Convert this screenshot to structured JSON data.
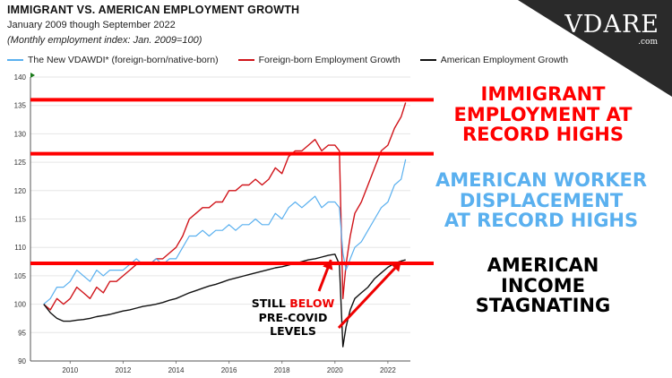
{
  "header": {
    "title": "IMMIGRANT VS. AMERICAN EMPLOYMENT GROWTH",
    "subtitle": "January 2009 though September 2022",
    "note": "(Monthly employment index: Jan. 2009=100)"
  },
  "logo": {
    "text": "VDARE",
    "suffix": ".com"
  },
  "legend": [
    {
      "label": "The New VDAWDI* (foreign-born/native-born)",
      "color": "#5ab0ef"
    },
    {
      "label": "Foreign-born Employment Growth",
      "color": "#d0141a"
    },
    {
      "label": "American Employment Growth",
      "color": "#111111"
    }
  ],
  "callouts": {
    "immigrant": [
      "IMMIGRANT",
      "EMPLOYMENT AT",
      "RECORD HIGHS"
    ],
    "displacement": [
      "AMERICAN WORKER",
      "DISPLACEMENT",
      "AT RECORD HIGHS"
    ],
    "income": [
      "AMERICAN",
      "INCOME",
      "STAGNATING"
    ],
    "covid_before": "STILL ",
    "covid_red": "BELOW",
    "covid_after": [
      "PRE-COVID",
      "LEVELS"
    ]
  },
  "colors": {
    "foreign": "#d0141a",
    "ratio": "#5ab0ef",
    "american": "#111111",
    "highlight": "#ff0000"
  },
  "chart_data": {
    "type": "line",
    "x_unit": "year",
    "xlim": [
      2008.5,
      2022.85
    ],
    "ylim": [
      90,
      140
    ],
    "x_ticks": [
      2010,
      2012,
      2014,
      2016,
      2018,
      2020,
      2022
    ],
    "y_ticks": [
      90,
      95,
      100,
      105,
      110,
      115,
      120,
      125,
      130,
      135,
      140
    ],
    "highlight_lines": [
      136,
      126.5,
      107.2
    ],
    "series": [
      {
        "name": "Foreign-born Employment Growth",
        "color": "#d0141a",
        "points": [
          [
            2009.0,
            100
          ],
          [
            2009.25,
            99
          ],
          [
            2009.5,
            101
          ],
          [
            2009.75,
            100
          ],
          [
            2010.0,
            101
          ],
          [
            2010.25,
            103
          ],
          [
            2010.5,
            102
          ],
          [
            2010.75,
            101
          ],
          [
            2011.0,
            103
          ],
          [
            2011.25,
            102
          ],
          [
            2011.5,
            104
          ],
          [
            2011.75,
            104
          ],
          [
            2012.0,
            105
          ],
          [
            2012.25,
            106
          ],
          [
            2012.5,
            107
          ],
          [
            2012.75,
            107
          ],
          [
            2013.0,
            107
          ],
          [
            2013.25,
            108
          ],
          [
            2013.5,
            108
          ],
          [
            2013.75,
            109
          ],
          [
            2014.0,
            110
          ],
          [
            2014.25,
            112
          ],
          [
            2014.5,
            115
          ],
          [
            2014.75,
            116
          ],
          [
            2015.0,
            117
          ],
          [
            2015.25,
            117
          ],
          [
            2015.5,
            118
          ],
          [
            2015.75,
            118
          ],
          [
            2016.0,
            120
          ],
          [
            2016.25,
            120
          ],
          [
            2016.5,
            121
          ],
          [
            2016.75,
            121
          ],
          [
            2017.0,
            122
          ],
          [
            2017.25,
            121
          ],
          [
            2017.5,
            122
          ],
          [
            2017.75,
            124
          ],
          [
            2018.0,
            123
          ],
          [
            2018.25,
            126
          ],
          [
            2018.5,
            127
          ],
          [
            2018.75,
            127
          ],
          [
            2019.0,
            128
          ],
          [
            2019.25,
            129
          ],
          [
            2019.5,
            127
          ],
          [
            2019.75,
            128
          ],
          [
            2020.0,
            128
          ],
          [
            2020.17,
            127
          ],
          [
            2020.3,
            101
          ],
          [
            2020.42,
            107
          ],
          [
            2020.58,
            112
          ],
          [
            2020.75,
            116
          ],
          [
            2021.0,
            118
          ],
          [
            2021.25,
            121
          ],
          [
            2021.5,
            124
          ],
          [
            2021.75,
            127
          ],
          [
            2022.0,
            128
          ],
          [
            2022.25,
            131
          ],
          [
            2022.5,
            133
          ],
          [
            2022.67,
            135.5
          ]
        ]
      },
      {
        "name": "The New VDAWDI* (foreign-born/native-born)",
        "color": "#5ab0ef",
        "points": [
          [
            2009.0,
            100
          ],
          [
            2009.25,
            101
          ],
          [
            2009.5,
            103
          ],
          [
            2009.75,
            103
          ],
          [
            2010.0,
            104
          ],
          [
            2010.25,
            106
          ],
          [
            2010.5,
            105
          ],
          [
            2010.75,
            104
          ],
          [
            2011.0,
            106
          ],
          [
            2011.25,
            105
          ],
          [
            2011.5,
            106
          ],
          [
            2011.75,
            106
          ],
          [
            2012.0,
            106
          ],
          [
            2012.25,
            107
          ],
          [
            2012.5,
            108
          ],
          [
            2012.75,
            107
          ],
          [
            2013.0,
            107
          ],
          [
            2013.25,
            108
          ],
          [
            2013.5,
            107
          ],
          [
            2013.75,
            108
          ],
          [
            2014.0,
            108
          ],
          [
            2014.25,
            110
          ],
          [
            2014.5,
            112
          ],
          [
            2014.75,
            112
          ],
          [
            2015.0,
            113
          ],
          [
            2015.25,
            112
          ],
          [
            2015.5,
            113
          ],
          [
            2015.75,
            113
          ],
          [
            2016.0,
            114
          ],
          [
            2016.25,
            113
          ],
          [
            2016.5,
            114
          ],
          [
            2016.75,
            114
          ],
          [
            2017.0,
            115
          ],
          [
            2017.25,
            114
          ],
          [
            2017.5,
            114
          ],
          [
            2017.75,
            116
          ],
          [
            2018.0,
            115
          ],
          [
            2018.25,
            117
          ],
          [
            2018.5,
            118
          ],
          [
            2018.75,
            117
          ],
          [
            2019.0,
            118
          ],
          [
            2019.25,
            119
          ],
          [
            2019.5,
            117
          ],
          [
            2019.75,
            118
          ],
          [
            2020.0,
            118
          ],
          [
            2020.17,
            117
          ],
          [
            2020.3,
            109
          ],
          [
            2020.42,
            106
          ],
          [
            2020.58,
            108
          ],
          [
            2020.75,
            110
          ],
          [
            2021.0,
            111
          ],
          [
            2021.25,
            113
          ],
          [
            2021.5,
            115
          ],
          [
            2021.75,
            117
          ],
          [
            2022.0,
            118
          ],
          [
            2022.25,
            121
          ],
          [
            2022.5,
            122
          ],
          [
            2022.67,
            125.5
          ]
        ]
      },
      {
        "name": "American Employment Growth",
        "color": "#111111",
        "points": [
          [
            2009.0,
            100
          ],
          [
            2009.25,
            98.5
          ],
          [
            2009.5,
            97.5
          ],
          [
            2009.75,
            97
          ],
          [
            2010.0,
            97
          ],
          [
            2010.25,
            97.2
          ],
          [
            2010.5,
            97.3
          ],
          [
            2010.75,
            97.5
          ],
          [
            2011.0,
            97.8
          ],
          [
            2011.25,
            98
          ],
          [
            2011.5,
            98.2
          ],
          [
            2011.75,
            98.5
          ],
          [
            2012.0,
            98.8
          ],
          [
            2012.25,
            99
          ],
          [
            2012.5,
            99.3
          ],
          [
            2012.75,
            99.6
          ],
          [
            2013.0,
            99.8
          ],
          [
            2013.25,
            100
          ],
          [
            2013.5,
            100.3
          ],
          [
            2013.75,
            100.7
          ],
          [
            2014.0,
            101
          ],
          [
            2014.25,
            101.5
          ],
          [
            2014.5,
            102
          ],
          [
            2014.75,
            102.4
          ],
          [
            2015.0,
            102.8
          ],
          [
            2015.25,
            103.2
          ],
          [
            2015.5,
            103.5
          ],
          [
            2015.75,
            103.9
          ],
          [
            2016.0,
            104.3
          ],
          [
            2016.25,
            104.6
          ],
          [
            2016.5,
            104.9
          ],
          [
            2016.75,
            105.2
          ],
          [
            2017.0,
            105.5
          ],
          [
            2017.25,
            105.8
          ],
          [
            2017.5,
            106.1
          ],
          [
            2017.75,
            106.4
          ],
          [
            2018.0,
            106.6
          ],
          [
            2018.25,
            106.9
          ],
          [
            2018.5,
            107.2
          ],
          [
            2018.75,
            107.5
          ],
          [
            2019.0,
            107.8
          ],
          [
            2019.25,
            108
          ],
          [
            2019.5,
            108.3
          ],
          [
            2019.75,
            108.6
          ],
          [
            2020.0,
            108.8
          ],
          [
            2020.17,
            107
          ],
          [
            2020.3,
            92.5
          ],
          [
            2020.42,
            96
          ],
          [
            2020.58,
            99
          ],
          [
            2020.75,
            101
          ],
          [
            2021.0,
            102
          ],
          [
            2021.25,
            103
          ],
          [
            2021.5,
            104.5
          ],
          [
            2021.75,
            105.5
          ],
          [
            2022.0,
            106.5
          ],
          [
            2022.25,
            107.2
          ],
          [
            2022.5,
            107.6
          ],
          [
            2022.67,
            107.8
          ]
        ]
      }
    ]
  }
}
